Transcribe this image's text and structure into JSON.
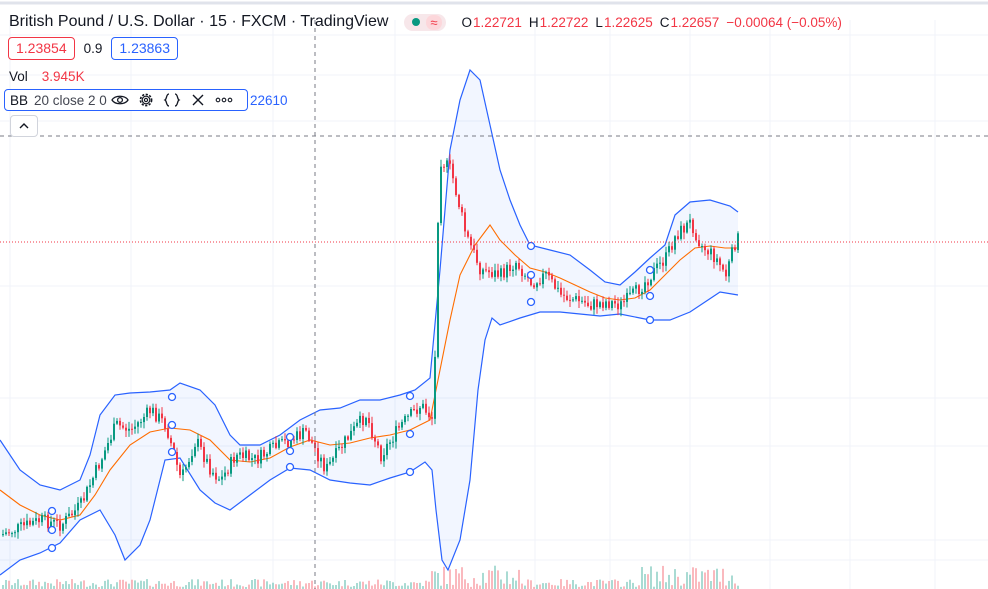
{
  "header": {
    "title": "British Pound / U.S. Dollar · 15 · FXCM · TradingView",
    "open_label": "O",
    "open": "1.22721",
    "high_label": "H",
    "high": "1.22722",
    "low_label": "L",
    "low": "1.22625",
    "close_label": "C",
    "close": "1.22657",
    "change": "−0.00064 (−0.05%)",
    "market_status_icon": "≈"
  },
  "prices": {
    "bid": "1.23854",
    "spread": "0.9",
    "ask": "1.23863"
  },
  "volume": {
    "label": "Vol",
    "value": "3.945K"
  },
  "indicator": {
    "name": "BB",
    "params": "20 close 2 0",
    "value": "22610"
  },
  "icons": [
    "eye-icon",
    "gear-icon",
    "source-code-icon",
    "close-icon",
    "more-icon",
    "chevron-up-icon"
  ],
  "colors": {
    "up": "#089981",
    "down": "#f23645",
    "band": "#2962ff",
    "basis": "#ff6d00",
    "accent": "#2962ff"
  }
}
